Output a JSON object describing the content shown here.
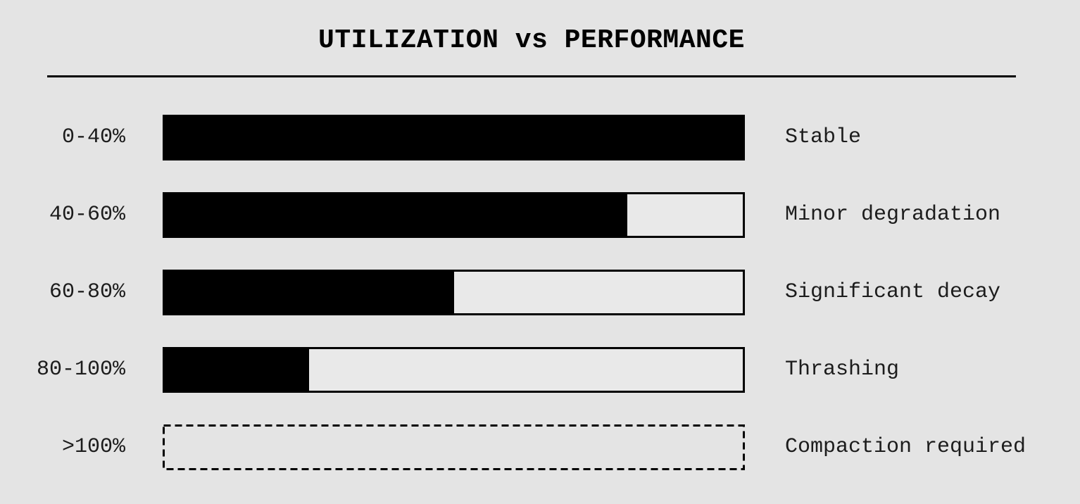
{
  "page": {
    "background": "#e4e4e4",
    "ink": "#000000",
    "label_color": "#1c1c1c"
  },
  "chart_data": {
    "type": "bar",
    "orientation": "horizontal",
    "title": "UTILIZATION vs PERFORMANCE",
    "categories": [
      "0-40%",
      "40-60%",
      "60-80%",
      "80-100%",
      ">100%"
    ],
    "series": [
      {
        "name": "performance-fill-percent",
        "values": [
          100,
          80,
          50,
          25,
          0
        ]
      }
    ],
    "bar_annotations": [
      "Stable",
      "Minor degradation",
      "Significant decay",
      "Thrashing",
      "Compaction required"
    ],
    "bar_styles": [
      "solid-filled",
      "solid-partial",
      "solid-partial",
      "solid-partial",
      "dashed-empty-outline"
    ],
    "xlim": [
      0,
      100
    ],
    "grid": false,
    "legend_position": "none",
    "colors": {
      "bar_fill": "#000000",
      "bar_empty": "#e9e9e9",
      "outline": "#000000",
      "background": "#e4e4e4"
    }
  },
  "rows": [
    {
      "category": "0-40%",
      "fill_pct": 100,
      "label": "Stable"
    },
    {
      "category": "40-60%",
      "fill_pct": 80,
      "label": "Minor degradation"
    },
    {
      "category": "60-80%",
      "fill_pct": 50,
      "label": "Significant decay"
    },
    {
      "category": "80-100%",
      "fill_pct": 25,
      "label": "Thrashing"
    },
    {
      "category": ">100%",
      "fill_pct": 0,
      "label": "Compaction required"
    }
  ]
}
